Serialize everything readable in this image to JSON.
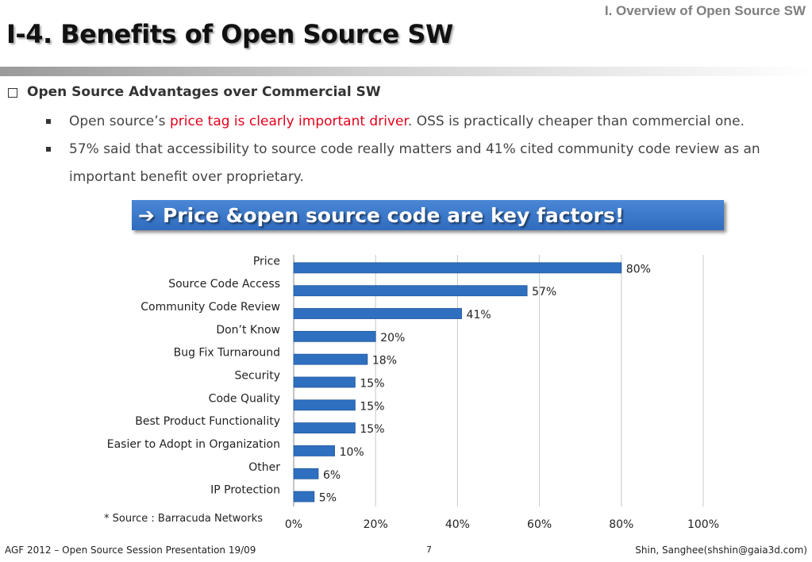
{
  "header": {
    "section": "I. Overview of Open Source SW",
    "title": "I-4. Benefits of Open Source SW"
  },
  "content": {
    "heading": "Open Source Advantages over Commercial SW",
    "bullet1": {
      "pre": "Open source’s ",
      "highlight": "price tag is clearly important driver",
      "post": ". OSS is practically cheaper than commercial one."
    },
    "bullet2": "57% said that accessibility to source code really matters and 41% cited community code review as an important benefit over proprietary."
  },
  "callout": {
    "arrow": "➔",
    "text": "Price &open source code are key factors!"
  },
  "chart_data": {
    "type": "bar",
    "orientation": "horizontal",
    "categories": [
      "Price",
      "Source Code Access",
      "Community Code Review",
      "Don’t Know",
      "Bug Fix Turnaround",
      "Security",
      "Code Quality",
      "Best Product Functionality",
      "Easier to Adopt in Organization",
      "Other",
      "IP Protection"
    ],
    "values": [
      80,
      57,
      41,
      20,
      18,
      15,
      15,
      15,
      10,
      6,
      5
    ],
    "value_labels": [
      "80%",
      "57%",
      "41%",
      "20%",
      "18%",
      "15%",
      "15%",
      "15%",
      "10%",
      "6%",
      "5%"
    ],
    "xlim": [
      0,
      100
    ],
    "xticks": [
      0,
      20,
      40,
      60,
      80,
      100
    ],
    "xtick_labels": [
      "0%",
      "20%",
      "40%",
      "60%",
      "80%",
      "100%"
    ],
    "grid": "vertical",
    "bar_color": "#2e6fc0"
  },
  "source_note": "* Source : Barracuda Networks",
  "footer": {
    "left": "AGF 2012 – Open Source Session Presentation 19/09",
    "page": "7",
    "right": "Shin, Sanghee(shshin@gaia3d.com)"
  }
}
